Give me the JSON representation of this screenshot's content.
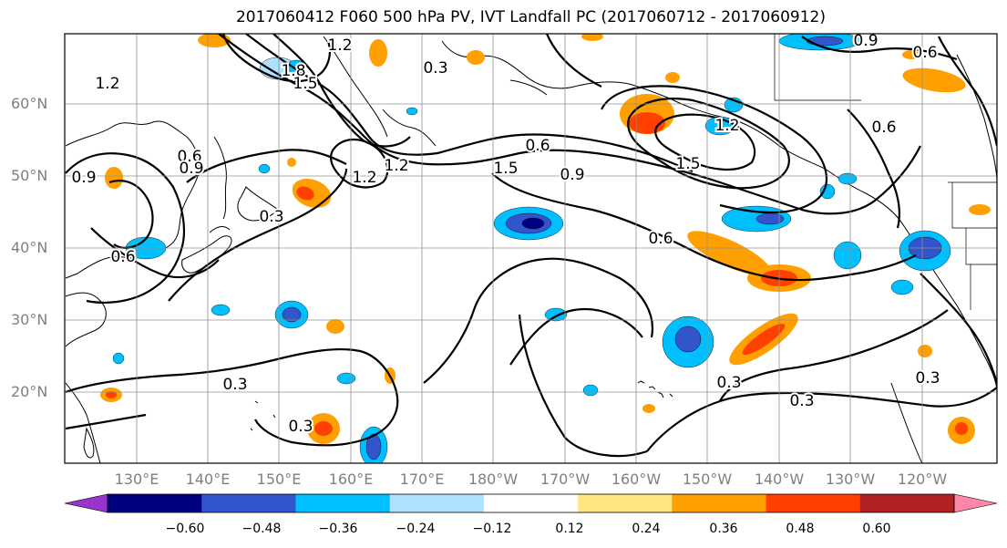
{
  "title": "2017060412 F060 500 hPa PV, IVT Landfall PC (2017060712 - 2017060912)",
  "lat_labels": [
    "60°N",
    "50°N",
    "40°N",
    "30°N",
    "20°N"
  ],
  "lon_labels": [
    "130°E",
    "140°E",
    "150°E",
    "160°E",
    "170°E",
    "180°W",
    "170°W",
    "160°W",
    "150°W",
    "140°W",
    "130°W",
    "120°W"
  ],
  "contour_labels": [
    "1.2",
    "1.8",
    "1.5",
    "1.2",
    "0.3",
    "0.9",
    "0.6",
    "0.6",
    "0.9",
    "1.2",
    "1.5",
    "1.2",
    "0.6",
    "0.9",
    "1.2",
    "1.5",
    "0.3",
    "0.6",
    "0.6",
    "0.3",
    "0.3",
    "0.3",
    "0.3",
    "0.3",
    "0.9",
    "0.6"
  ],
  "colorbar": {
    "tick_labels": [
      "−0.60",
      "−0.48",
      "−0.36",
      "−0.24",
      "−0.12",
      "0.12",
      "0.24",
      "0.36",
      "0.48",
      "0.60"
    ],
    "colors": [
      "#9933cc",
      "#000080",
      "#3355cc",
      "#00bfff",
      "#b0e0ff",
      "#ffffff",
      "#ffe680",
      "#ffa000",
      "#ff4000",
      "#b22222",
      "#ff88aa"
    ]
  }
}
